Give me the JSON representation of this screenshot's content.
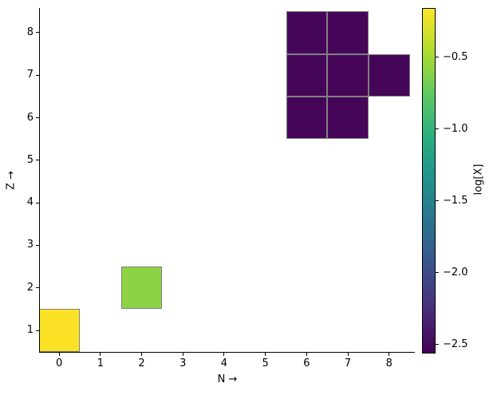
{
  "chart_data": {
    "type": "heatmap",
    "title": "",
    "xlabel": "N →",
    "ylabel": "Z →",
    "colorbar_label": "log[X]",
    "x_ticks": [
      0,
      1,
      2,
      3,
      4,
      5,
      6,
      7,
      8
    ],
    "y_ticks": [
      1,
      2,
      3,
      4,
      5,
      6,
      7,
      8
    ],
    "xlim": [
      -0.5,
      8.6
    ],
    "ylim": [
      0.5,
      8.6
    ],
    "grid": false,
    "colormap": "viridis",
    "cell_edge_color": "#7f7f7f",
    "spine_color": "#000000",
    "colorbar_range": [
      -2.56,
      -0.16
    ],
    "colorbar_ticks": [
      {
        "value": -0.5,
        "label": "−0.5"
      },
      {
        "value": -1.0,
        "label": "−1.0"
      },
      {
        "value": -1.5,
        "label": "−1.5"
      },
      {
        "value": -2.0,
        "label": "−2.0"
      },
      {
        "value": -2.5,
        "label": "−2.5"
      }
    ],
    "cells": [
      {
        "n": 0,
        "z": 1,
        "value": -0.16,
        "color": "#fbe226"
      },
      {
        "n": 2,
        "z": 2,
        "value": -0.55,
        "color": "#8ed345"
      },
      {
        "n": 6,
        "z": 6,
        "value": -2.5,
        "color": "#450659"
      },
      {
        "n": 7,
        "z": 6,
        "value": -2.5,
        "color": "#450659"
      },
      {
        "n": 6,
        "z": 7,
        "value": -2.5,
        "color": "#450659"
      },
      {
        "n": 7,
        "z": 7,
        "value": -2.5,
        "color": "#450659"
      },
      {
        "n": 8,
        "z": 7,
        "value": -2.5,
        "color": "#450659"
      },
      {
        "n": 6,
        "z": 8,
        "value": -2.5,
        "color": "#450659"
      },
      {
        "n": 7,
        "z": 8,
        "value": -2.5,
        "color": "#450659"
      }
    ]
  }
}
